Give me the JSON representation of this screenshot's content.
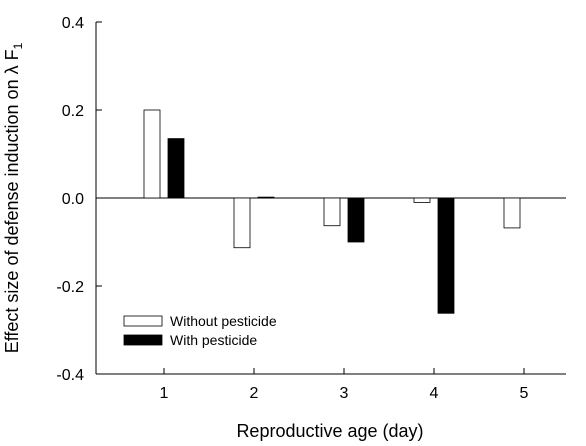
{
  "chart_data": {
    "type": "bar",
    "title": "",
    "xlabel": "Reproductive age (day)",
    "ylabel": "Effect size of defense induction on λ F",
    "ylabel_subscript": "1",
    "categories": [
      "1",
      "2",
      "3",
      "4",
      "5"
    ],
    "ylim": [
      -0.4,
      0.4
    ],
    "yticks": [
      {
        "value": -0.4,
        "label": "-0.4"
      },
      {
        "value": -0.2,
        "label": "-0.2"
      },
      {
        "value": 0.0,
        "label": "0.0"
      },
      {
        "value": 0.2,
        "label": "0.2"
      },
      {
        "value": 0.4,
        "label": "0.4"
      }
    ],
    "grid": false,
    "legend_position": "bottom-left",
    "series": [
      {
        "name": "Without pesticide",
        "fill": "#ffffff",
        "stroke": "#000000",
        "values": [
          0.2,
          -0.113,
          -0.063,
          -0.01,
          -0.068
        ]
      },
      {
        "name": "With pesticide",
        "fill": "#000000",
        "stroke": "#000000",
        "values": [
          0.135,
          0.002,
          -0.1,
          -0.262,
          null
        ]
      }
    ]
  }
}
